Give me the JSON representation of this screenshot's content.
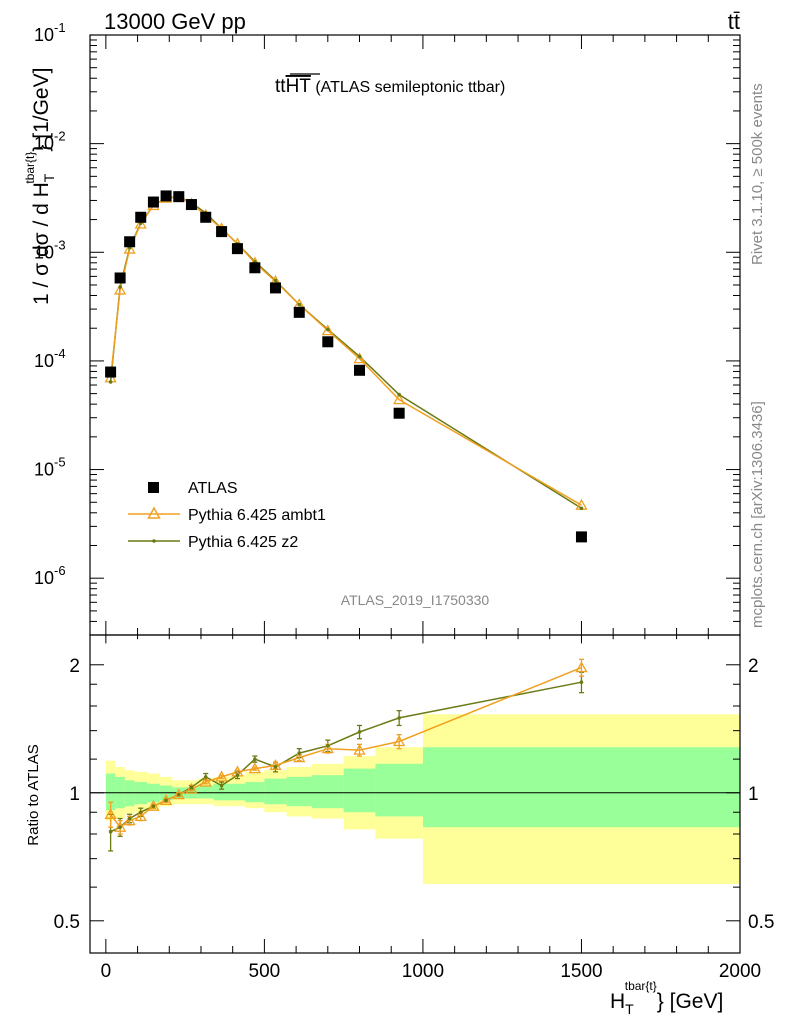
{
  "header": {
    "energy_label": "13000 GeV pp",
    "process_label": "tt̄"
  },
  "side_labels": {
    "rivet": "Rivet 3.1.10, ≥ 500k events",
    "mcplots": "mcplots.cern.ch [arXiv:1306.3436]"
  },
  "colors": {
    "data": "#000000",
    "ambt1": "#f0a020",
    "z2": "#6b7a12",
    "band_inner": "#99ff99",
    "band_outer": "#ffff99"
  },
  "chart_data": [
    {
      "type": "scatter",
      "title_main": "tt",
      "title_over": "HT",
      "title_rest": " (ATLAS semileptonic ttbar)",
      "watermark": "ATLAS_2019_I1750330",
      "ylabel_main": "1 / σ dσ / d H",
      "ylabel_sub": "T",
      "ylabel_sup": "tbar{t}",
      "ylabel_tail": "} [1/GeV]",
      "yscale": "log",
      "ylim": [
        3e-07,
        0.1
      ],
      "xlim": [
        -50,
        2000
      ],
      "ytick_labels": [
        {
          "base": "10",
          "exp": "-1",
          "value": 0.1
        },
        {
          "base": "10",
          "exp": "-2",
          "value": 0.01
        },
        {
          "base": "10",
          "exp": "-3",
          "value": 0.001
        },
        {
          "base": "10",
          "exp": "-4",
          "value": 0.0001
        },
        {
          "base": "10",
          "exp": "-5",
          "value": 1e-05
        },
        {
          "base": "10",
          "exp": "-6",
          "value": 1e-06
        }
      ],
      "legend_placement": "bottom-left",
      "legend": [
        "ATLAS",
        "Pythia 6.425 ambt1",
        "Pythia 6.425 z2"
      ],
      "series": [
        {
          "name": "ATLAS",
          "x": [
            15,
            45,
            75,
            110,
            150,
            190,
            230,
            270,
            315,
            365,
            415,
            470,
            535,
            610,
            700,
            800,
            925,
            1500
          ],
          "y": [
            7.9e-05,
            0.00058,
            0.00125,
            0.0021,
            0.0029,
            0.0033,
            0.00325,
            0.00275,
            0.0021,
            0.00155,
            0.00108,
            0.00072,
            0.00047,
            0.00028,
            0.00015,
            8.2e-05,
            3.3e-05,
            2.4e-06
          ]
        },
        {
          "name": "Pythia 6.425 ambt1",
          "x": [
            15,
            45,
            75,
            110,
            150,
            190,
            230,
            270,
            315,
            365,
            415,
            470,
            535,
            610,
            700,
            800,
            925,
            1500
          ],
          "y": [
            7e-05,
            0.00045,
            0.00107,
            0.00182,
            0.0027,
            0.00315,
            0.00325,
            0.0028,
            0.0022,
            0.00165,
            0.0012,
            0.0008,
            0.00054,
            0.00033,
            0.00019,
            0.000105,
            4.4e-05,
            4.7e-06
          ]
        },
        {
          "name": "Pythia 6.425 z2",
          "x": [
            15,
            45,
            75,
            110,
            150,
            190,
            230,
            270,
            315,
            365,
            415,
            470,
            535,
            610,
            700,
            800,
            925,
            1500
          ],
          "y": [
            6.4e-05,
            0.00048,
            0.0011,
            0.00185,
            0.0027,
            0.00315,
            0.00325,
            0.00285,
            0.0023,
            0.00165,
            0.0012,
            0.00082,
            0.00055,
            0.00033,
            0.000195,
            0.00011,
            4.9e-05,
            4.4e-06
          ]
        }
      ]
    },
    {
      "type": "line",
      "ylabel": "Ratio to ATLAS",
      "xlabel_main": "H",
      "xlabel_sub": "T",
      "xlabel_sup": "tbar{t}",
      "xlabel_tail": "} [GeV]",
      "xlim": [
        -50,
        2000
      ],
      "ylim": [
        0.42,
        2.35
      ],
      "yscale": "log",
      "xtick_labels": [
        {
          "label": "0",
          "value": 0
        },
        {
          "label": "500",
          "value": 500
        },
        {
          "label": "1000",
          "value": 1000
        },
        {
          "label": "1500",
          "value": 1500
        },
        {
          "label": "2000",
          "value": 2000
        }
      ],
      "ytick_labels": [
        {
          "label": "2",
          "value": 2
        },
        {
          "label": "1",
          "value": 1
        },
        {
          "label": "0.5",
          "value": 0.5
        }
      ],
      "bin_edges": [
        0,
        30,
        60,
        90,
        130,
        170,
        210,
        250,
        290,
        340,
        390,
        440,
        500,
        570,
        650,
        750,
        850,
        1000,
        2000
      ],
      "band_inner": [
        [
          0.91,
          1.11
        ],
        [
          0.92,
          1.09
        ],
        [
          0.93,
          1.07
        ],
        [
          0.94,
          1.06
        ],
        [
          0.95,
          1.05
        ],
        [
          0.96,
          1.04
        ],
        [
          0.97,
          1.03
        ],
        [
          0.97,
          1.03
        ],
        [
          0.97,
          1.04
        ],
        [
          0.96,
          1.05
        ],
        [
          0.96,
          1.05
        ],
        [
          0.95,
          1.06
        ],
        [
          0.94,
          1.08
        ],
        [
          0.93,
          1.09
        ],
        [
          0.92,
          1.1
        ],
        [
          0.9,
          1.14
        ],
        [
          0.88,
          1.17
        ],
        [
          0.83,
          1.28
        ]
      ],
      "band_outer": [
        [
          0.86,
          1.19
        ],
        [
          0.87,
          1.15
        ],
        [
          0.89,
          1.13
        ],
        [
          0.9,
          1.12
        ],
        [
          0.91,
          1.11
        ],
        [
          0.93,
          1.09
        ],
        [
          0.94,
          1.07
        ],
        [
          0.94,
          1.07
        ],
        [
          0.94,
          1.08
        ],
        [
          0.93,
          1.09
        ],
        [
          0.93,
          1.1
        ],
        [
          0.92,
          1.12
        ],
        [
          0.9,
          1.13
        ],
        [
          0.88,
          1.15
        ],
        [
          0.87,
          1.17
        ],
        [
          0.82,
          1.22
        ],
        [
          0.78,
          1.28
        ],
        [
          0.61,
          1.53
        ]
      ],
      "series": [
        {
          "name": "Pythia 6.425 ambt1",
          "x": [
            15,
            45,
            75,
            110,
            150,
            190,
            230,
            270,
            315,
            365,
            415,
            470,
            535,
            610,
            700,
            800,
            925,
            1500
          ],
          "y": [
            0.89,
            0.83,
            0.86,
            0.88,
            0.93,
            0.96,
            0.99,
            1.02,
            1.06,
            1.09,
            1.12,
            1.14,
            1.16,
            1.21,
            1.27,
            1.26,
            1.32,
            1.97
          ],
          "err": [
            0.06,
            0.03,
            0.02,
            0.02,
            0.01,
            0.01,
            0.01,
            0.01,
            0.01,
            0.01,
            0.01,
            0.01,
            0.02,
            0.02,
            0.03,
            0.04,
            0.05,
            0.09
          ]
        },
        {
          "name": "Pythia 6.425 z2",
          "x": [
            15,
            45,
            75,
            110,
            150,
            190,
            230,
            270,
            315,
            365,
            415,
            470,
            535,
            610,
            700,
            800,
            925,
            1500
          ],
          "y": [
            0.81,
            0.83,
            0.87,
            0.9,
            0.93,
            0.96,
            0.99,
            1.03,
            1.09,
            1.04,
            1.1,
            1.2,
            1.15,
            1.24,
            1.29,
            1.39,
            1.5,
            1.82
          ],
          "err": [
            0.08,
            0.04,
            0.02,
            0.02,
            0.01,
            0.01,
            0.01,
            0.01,
            0.02,
            0.02,
            0.02,
            0.02,
            0.03,
            0.03,
            0.04,
            0.05,
            0.06,
            0.1
          ]
        }
      ]
    }
  ]
}
